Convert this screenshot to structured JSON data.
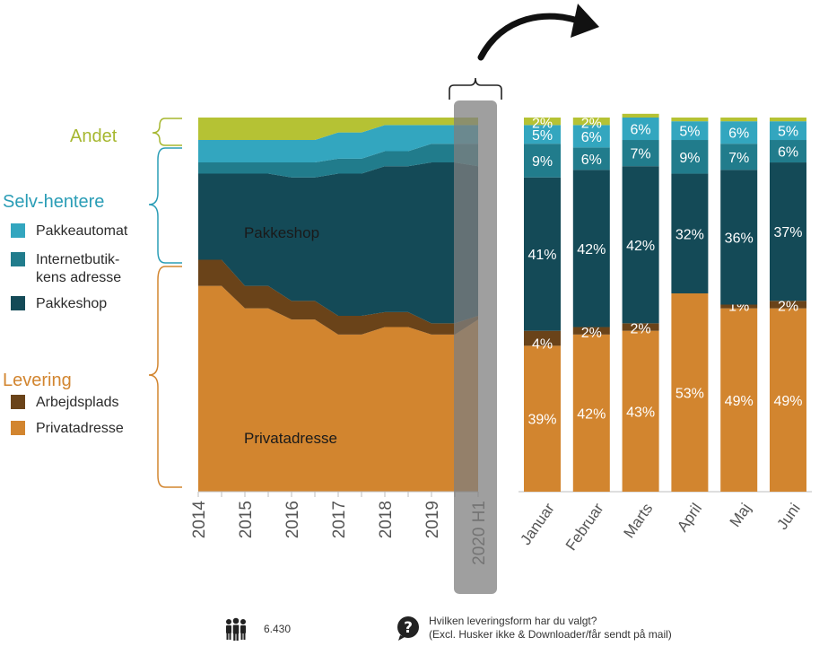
{
  "colors": {
    "andet": "#b5c234",
    "pakkeautomat": "#33a6bf",
    "internetbutik": "#217c8c",
    "pakkeshop": "#144a57",
    "arbejdsplads": "#6a4319",
    "privatadresse": "#d2852f",
    "highlight": "#7f7f7f"
  },
  "legend": {
    "groups": [
      {
        "title": "Andet",
        "color": "#a6b72f",
        "items": []
      },
      {
        "title": "Selv-hentere",
        "color": "#2a9db6",
        "items": [
          {
            "label_lines": [
              "Pakkeautomat"
            ],
            "color": "#33a6bf"
          },
          {
            "label_lines": [
              "Internetbutik-",
              "kens adresse"
            ],
            "color": "#217c8c"
          },
          {
            "label_lines": [
              "Pakkeshop"
            ],
            "color": "#144a57"
          }
        ]
      },
      {
        "title": "Levering",
        "color": "#d2852f",
        "items": [
          {
            "label_lines": [
              "Arbejdsplads"
            ],
            "color": "#6a4319"
          },
          {
            "label_lines": [
              "Privatadresse"
            ],
            "color": "#d2852f"
          }
        ]
      }
    ]
  },
  "chart_data": [
    {
      "type": "area",
      "stacked": true,
      "ylim": [
        0,
        100
      ],
      "x": [
        "2014",
        "",
        "2015",
        "",
        "2016",
        "",
        "2017",
        "",
        "2018",
        "",
        "2019",
        "",
        "2020 H1"
      ],
      "series": [
        {
          "name": "Privatadresse",
          "values": [
            55,
            55,
            49,
            49,
            46,
            46,
            42,
            42,
            44,
            44,
            42,
            42,
            46
          ]
        },
        {
          "name": "Arbejdsplads",
          "values": [
            7,
            7,
            6,
            6,
            5,
            5,
            5,
            5,
            4,
            4,
            3,
            3,
            1
          ]
        },
        {
          "name": "Pakkeshop",
          "values": [
            23,
            23,
            30,
            30,
            33,
            33,
            38,
            38,
            39,
            39,
            43,
            43,
            40
          ]
        },
        {
          "name": "Internetbutikkens adresse",
          "values": [
            3,
            3,
            3,
            3,
            4,
            4,
            4,
            4,
            4,
            4,
            5,
            5,
            6
          ]
        },
        {
          "name": "Pakkeautomat",
          "values": [
            6,
            6,
            6,
            6,
            6,
            6,
            7,
            7,
            7,
            7,
            5,
            5,
            5
          ]
        },
        {
          "name": "Andet",
          "values": [
            6,
            6,
            6,
            6,
            6,
            6,
            4,
            4,
            2,
            2,
            2,
            2,
            2
          ]
        }
      ],
      "area_labels": [
        "Pakkeshop",
        "Privatadresse"
      ]
    },
    {
      "type": "bar",
      "stacked": true,
      "ylim": [
        0,
        100
      ],
      "categories": [
        "Januar",
        "Februar",
        "Marts",
        "April",
        "Maj",
        "Juni"
      ],
      "series": [
        {
          "name": "Privatadresse",
          "values": [
            39,
            42,
            43,
            53,
            49,
            49
          ]
        },
        {
          "name": "Arbejdsplads",
          "values": [
            4,
            2,
            2,
            0,
            1,
            2
          ]
        },
        {
          "name": "Pakkeshop",
          "values": [
            41,
            42,
            42,
            32,
            36,
            37
          ]
        },
        {
          "name": "Internetbutikkens adresse",
          "values": [
            9,
            6,
            7,
            9,
            7,
            6
          ]
        },
        {
          "name": "Pakkeautomat",
          "values": [
            5,
            6,
            6,
            5,
            6,
            5
          ]
        },
        {
          "name": "Andet",
          "values": [
            2,
            2,
            1,
            1,
            1,
            1
          ]
        }
      ],
      "data_labels": [
        [
          "39%",
          "4%",
          "41%",
          "9%",
          "5%",
          "2%"
        ],
        [
          "42%",
          "2%",
          "42%",
          "6%",
          "6%",
          "2%"
        ],
        [
          "43%",
          "2%",
          "42%",
          "7%",
          "6%",
          ""
        ],
        [
          "53%",
          "",
          "32%",
          "9%",
          "5%",
          ""
        ],
        [
          "49%",
          "1%",
          "36%",
          "7%",
          "6%",
          ""
        ],
        [
          "49%",
          "2%",
          "37%",
          "6%",
          "5%",
          ""
        ]
      ]
    }
  ],
  "footer": {
    "respondents_icon": "people-icon",
    "respondents": "6.430",
    "question_icon": "question-icon",
    "question_line1": "Hvilken leveringsform har du valgt?",
    "question_line2": "(Excl. Husker ikke & Downloader/får sendt på mail)"
  }
}
